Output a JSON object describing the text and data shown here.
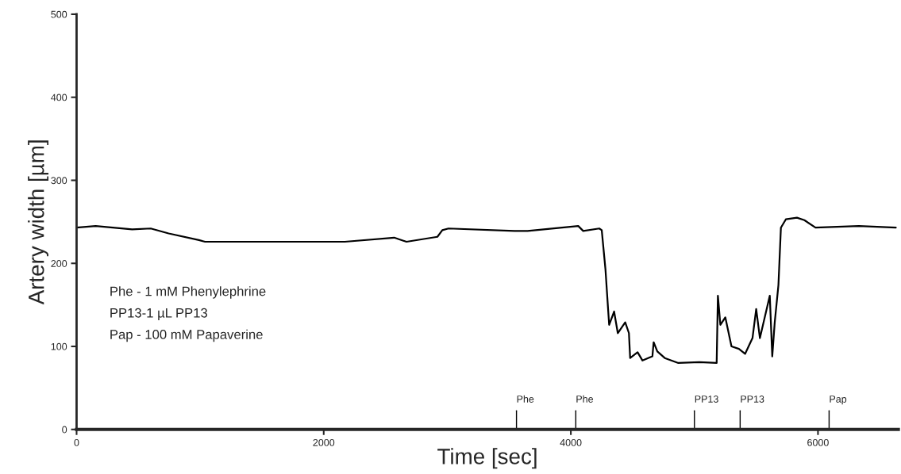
{
  "chart_data": {
    "type": "line",
    "xlabel": "Time [sec]",
    "ylabel": "Artery width [µm]",
    "xlim": [
      0,
      6650
    ],
    "ylim": [
      0,
      500
    ],
    "xticks": [
      0,
      2000,
      4000,
      6000
    ],
    "yticks": [
      0,
      100,
      200,
      300,
      400,
      500
    ],
    "grid": false,
    "marker": "none",
    "line_style": "solid",
    "series": [
      {
        "color": "#000000",
        "x": [
          0,
          154,
          450,
          600,
          745,
          990,
          1040,
          1680,
          2170,
          2570,
          2670,
          2920,
          2960,
          3010,
          3545,
          3650,
          4060,
          4100,
          4230,
          4250,
          4280,
          4300,
          4310,
          4350,
          4380,
          4440,
          4470,
          4480,
          4540,
          4580,
          4660,
          4670,
          4700,
          4760,
          4870,
          5040,
          5180,
          5190,
          5210,
          5250,
          5300,
          5360,
          5410,
          5470,
          5500,
          5530,
          5610,
          5630,
          5650,
          5680,
          5700,
          5740,
          5830,
          5890,
          5980,
          6330,
          6630
        ],
        "values": [
          243,
          245,
          241,
          242,
          236,
          228,
          226,
          226,
          226,
          231,
          226,
          232,
          240,
          242,
          239,
          239,
          245,
          239,
          242,
          240,
          193,
          148,
          126,
          142,
          116,
          129,
          116,
          86,
          93,
          83,
          88,
          105,
          94,
          86,
          80,
          81,
          80,
          161,
          126,
          135,
          100,
          97,
          91,
          110,
          145,
          110,
          161,
          88,
          129,
          174,
          243,
          253,
          255,
          252,
          243,
          245,
          243
        ]
      }
    ],
    "annotations": [
      "Phe - 1 mM Phenylephrine",
      "PP13-1 µL PP13",
      "Pap - 100 mM Papaverine"
    ],
    "ref_lines": [
      {
        "axis": "x",
        "value": 3560,
        "label": "Phe"
      },
      {
        "axis": "x",
        "value": 4040,
        "label": "Phe"
      },
      {
        "axis": "x",
        "value": 5000,
        "label": "PP13"
      },
      {
        "axis": "x",
        "value": 5370,
        "label": "PP13"
      },
      {
        "axis": "x",
        "value": 6090,
        "label": "Pap"
      }
    ]
  }
}
